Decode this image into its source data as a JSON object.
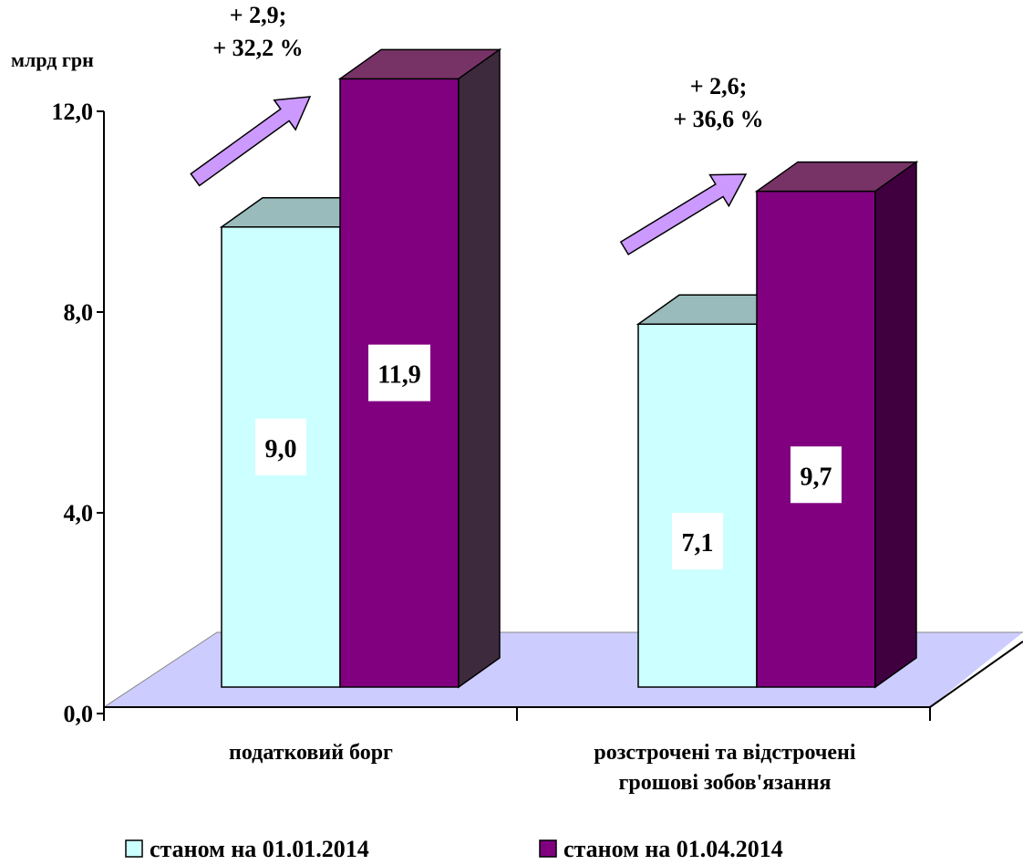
{
  "chart_data": {
    "type": "bar",
    "unit_label": "млрд грн",
    "categories": [
      "податковий борг",
      "розстрочені та відстрочені грошові зобов'язання"
    ],
    "category_lines": [
      [
        "податковий борг"
      ],
      [
        "розстрочені та відстрочені",
        "грошові зобов'язання"
      ]
    ],
    "series": [
      {
        "name": "станом на 01.01.2014",
        "values": [
          9.0,
          7.1
        ],
        "labels": [
          "9,0",
          "7,1"
        ],
        "color": "#CCFFFF",
        "top_color": "#99BBBB"
      },
      {
        "name": "станом на 01.04.2014",
        "values": [
          11.9,
          9.7
        ],
        "labels": [
          "11,9",
          "9,7"
        ],
        "color": "#800080",
        "top_color": "#773366"
      }
    ],
    "side_colors": [
      "#3D2B3D",
      "#400040"
    ],
    "floor_color": "#CCCCFF",
    "arrow_color": "#CC99FF",
    "ylim": [
      0,
      12
    ],
    "yticks": [
      0,
      4,
      8,
      12
    ],
    "ytick_labels": [
      "0,0",
      "4,0",
      "8,0",
      "12,0"
    ],
    "annotations": [
      {
        "lines": [
          "+ 2,9;",
          "+ 32,2 %"
        ]
      },
      {
        "lines": [
          "+ 2,6;",
          "+ 36,6 %"
        ]
      }
    ],
    "legend_position": "bottom"
  }
}
